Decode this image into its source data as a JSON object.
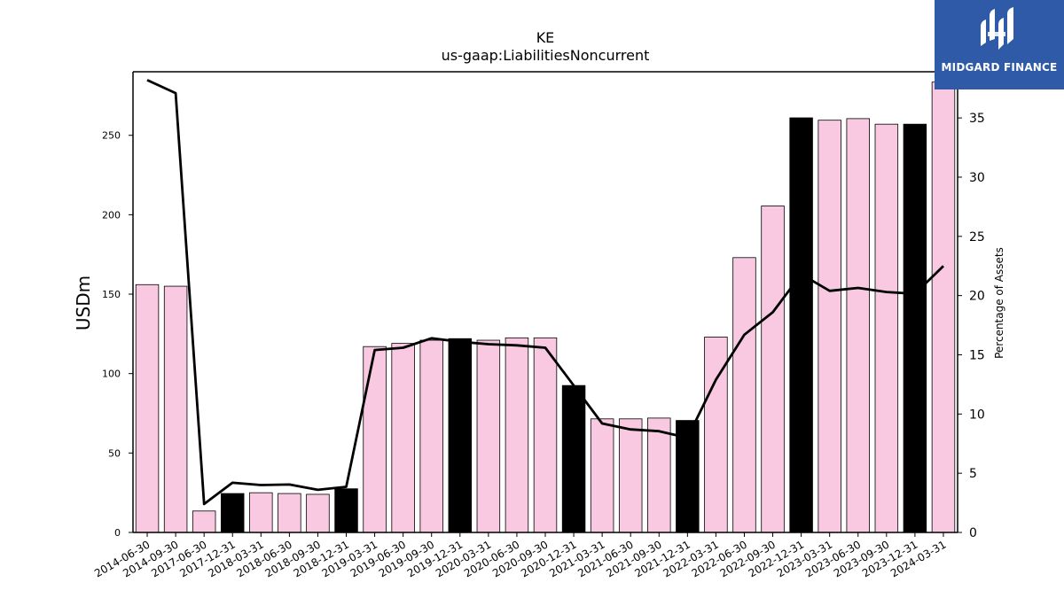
{
  "chart_data": {
    "type": "bar",
    "title": "KE",
    "subtitle": "us-gaap:LiabilitiesNoncurrent",
    "ylabel": "USDm",
    "ylabel_right": "Percentage of Assets",
    "ylim": [
      0,
      290
    ],
    "ylim_right": [
      0,
      38.9
    ],
    "yticks": [
      0,
      50,
      100,
      150,
      200,
      250
    ],
    "yticks_right": [
      0,
      5,
      10,
      15,
      20,
      25,
      30,
      35
    ],
    "categories": [
      "2014-06-30",
      "2014-09-30",
      "2017-06-30",
      "2017-12-31",
      "2018-03-31",
      "2018-06-30",
      "2018-09-30",
      "2018-12-31",
      "2019-03-31",
      "2019-06-30",
      "2019-09-30",
      "2019-12-31",
      "2020-03-31",
      "2020-06-30",
      "2020-09-30",
      "2020-12-31",
      "2021-03-31",
      "2021-06-30",
      "2021-09-30",
      "2021-12-31",
      "2022-03-31",
      "2022-06-30",
      "2022-09-30",
      "2022-12-31",
      "2023-03-31",
      "2023-06-30",
      "2023-09-30",
      "2023-12-31",
      "2024-03-31"
    ],
    "series": [
      {
        "values": [
          156,
          155,
          13.5,
          24.5,
          25,
          24.5,
          24,
          27.5,
          117,
          119,
          121,
          122,
          121,
          122.5,
          122.5,
          92.5,
          71.5,
          71.5,
          72,
          70.5,
          123,
          173,
          205.5,
          261,
          259.5,
          260.5,
          257,
          257,
          283.5
        ],
        "year_end": [
          false,
          false,
          false,
          true,
          false,
          false,
          false,
          true,
          false,
          false,
          false,
          true,
          false,
          false,
          false,
          true,
          false,
          false,
          false,
          true,
          false,
          false,
          false,
          true,
          false,
          false,
          false,
          true,
          false
        ],
        "color": "#f9c9e1",
        "year_end_color": "#000000"
      },
      {
        "type": "line",
        "axis": "right",
        "values": [
          38.2,
          37.1,
          2.4,
          4.2,
          4.0,
          4.05,
          3.6,
          3.85,
          15.4,
          15.6,
          16.4,
          16.1,
          15.9,
          15.8,
          15.6,
          12.4,
          9.2,
          8.7,
          8.55,
          8.0,
          12.9,
          16.7,
          18.6,
          21.8,
          20.4,
          20.65,
          20.3,
          20.15,
          22.5
        ],
        "color": "#000000"
      }
    ],
    "grid": false,
    "legend": "none"
  },
  "brand": {
    "name": "MIDGARD FINANCE",
    "color": "#2f5aa8",
    "icon": "midgard-logo-icon"
  }
}
